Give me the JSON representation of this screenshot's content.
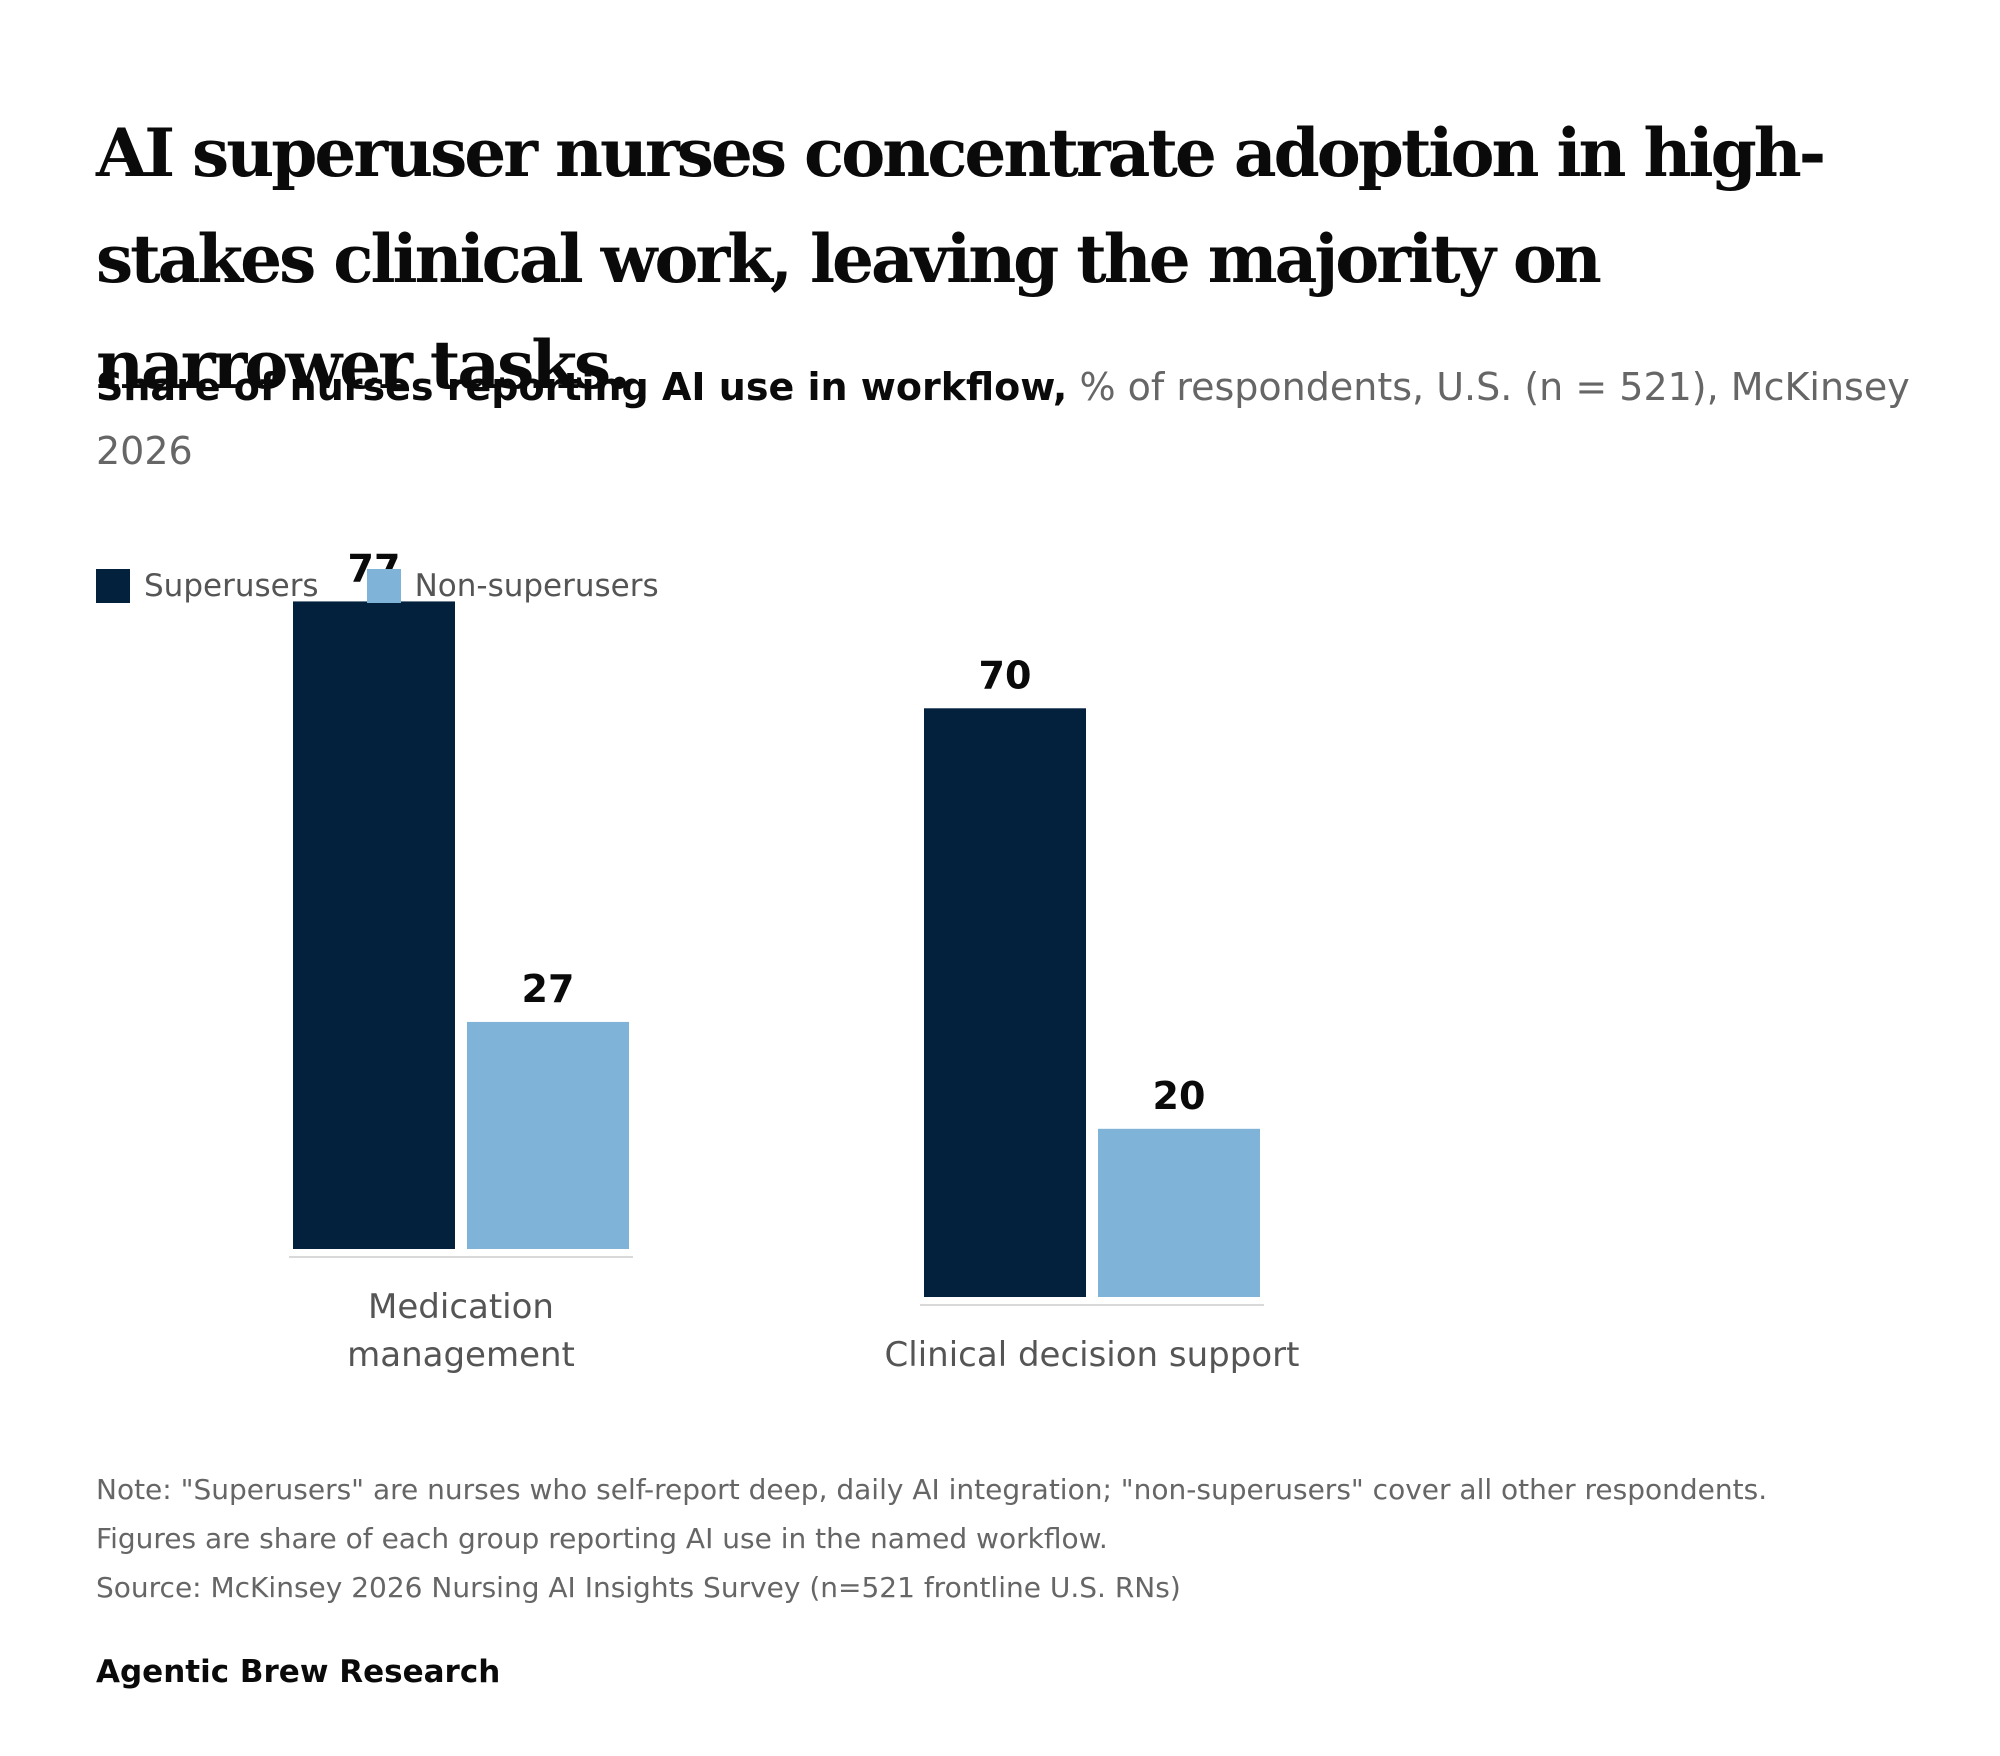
{
  "title": "AI superuser nurses concentrate adoption in high-stakes clinical work, leaving the majority on narrower tasks.",
  "subtitle": {
    "bold": "Share of nurses reporting AI use in workflow,",
    "rest": " % of respondents, U.S. (n = 521), McKinsey 2026"
  },
  "colors": {
    "superusers": "#03203d",
    "non_superusers": "#7fb3d8",
    "baseline": "#d9d9d9"
  },
  "chart_data": {
    "type": "bar",
    "categories": [
      "Medication management",
      "Clinical decision support"
    ],
    "series": [
      {
        "name": "Superusers",
        "values": [
          77,
          70
        ]
      },
      {
        "name": "Non-superusers",
        "values": [
          27,
          20
        ]
      }
    ],
    "legend_position": "top-left",
    "grid": false
  },
  "notes": {
    "note_line1": "Note: \"Superusers\" are nurses who self-report deep, daily AI integration; \"non-superusers\" cover all other respondents.",
    "note_line2": "Figures are share of each group reporting AI use in the named workflow.",
    "source": "Source: McKinsey 2026 Nursing AI Insights Survey (n=521 frontline U.S. RNs)"
  },
  "brand": "Agentic Brew Research"
}
